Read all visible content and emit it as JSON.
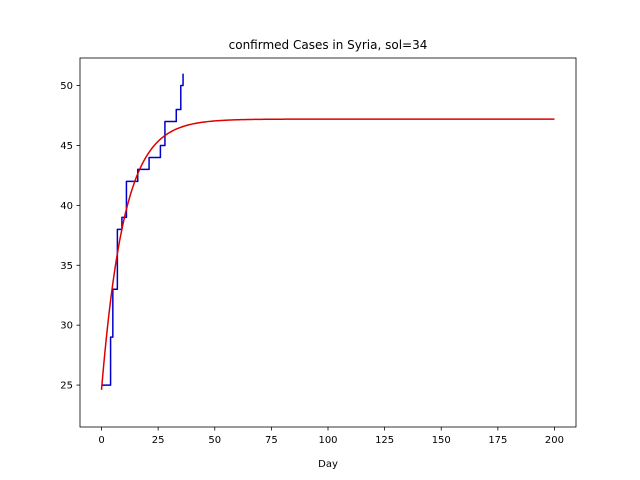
{
  "chart_data": {
    "type": "line",
    "title": "confirmed Cases in Syria, sol=34",
    "xlabel": "Day",
    "ylabel": "",
    "xlim": [
      -9.5,
      209.5
    ],
    "ylim": [
      21.5,
      52.3
    ],
    "xticks": [
      0,
      25,
      50,
      75,
      100,
      125,
      150,
      175,
      200
    ],
    "yticks": [
      25,
      30,
      35,
      40,
      45,
      50
    ],
    "grid": false,
    "series": [
      {
        "color": "#0000cc",
        "style": "step",
        "x": [
          0,
          1,
          2,
          3,
          4,
          5,
          6,
          7,
          8,
          9,
          10,
          11,
          12,
          13,
          14,
          15,
          16,
          17,
          18,
          19,
          20,
          21,
          22,
          23,
          24,
          25,
          26,
          27,
          28,
          29,
          30,
          31,
          32,
          33,
          34,
          35,
          36
        ],
        "y": [
          25,
          25,
          25,
          25,
          29,
          33,
          33,
          38,
          38,
          39,
          39,
          42,
          42,
          42,
          42,
          42,
          43,
          43,
          43,
          43,
          43,
          44,
          44,
          44,
          44,
          44,
          45,
          45,
          47,
          47,
          47,
          47,
          47,
          48,
          48,
          50,
          51
        ]
      },
      {
        "color": "#dd0000",
        "style": "smooth",
        "model": {
          "A": 47.2,
          "B": 24.6,
          "k": 0.1,
          "from": 0,
          "to": 200
        }
      }
    ]
  }
}
